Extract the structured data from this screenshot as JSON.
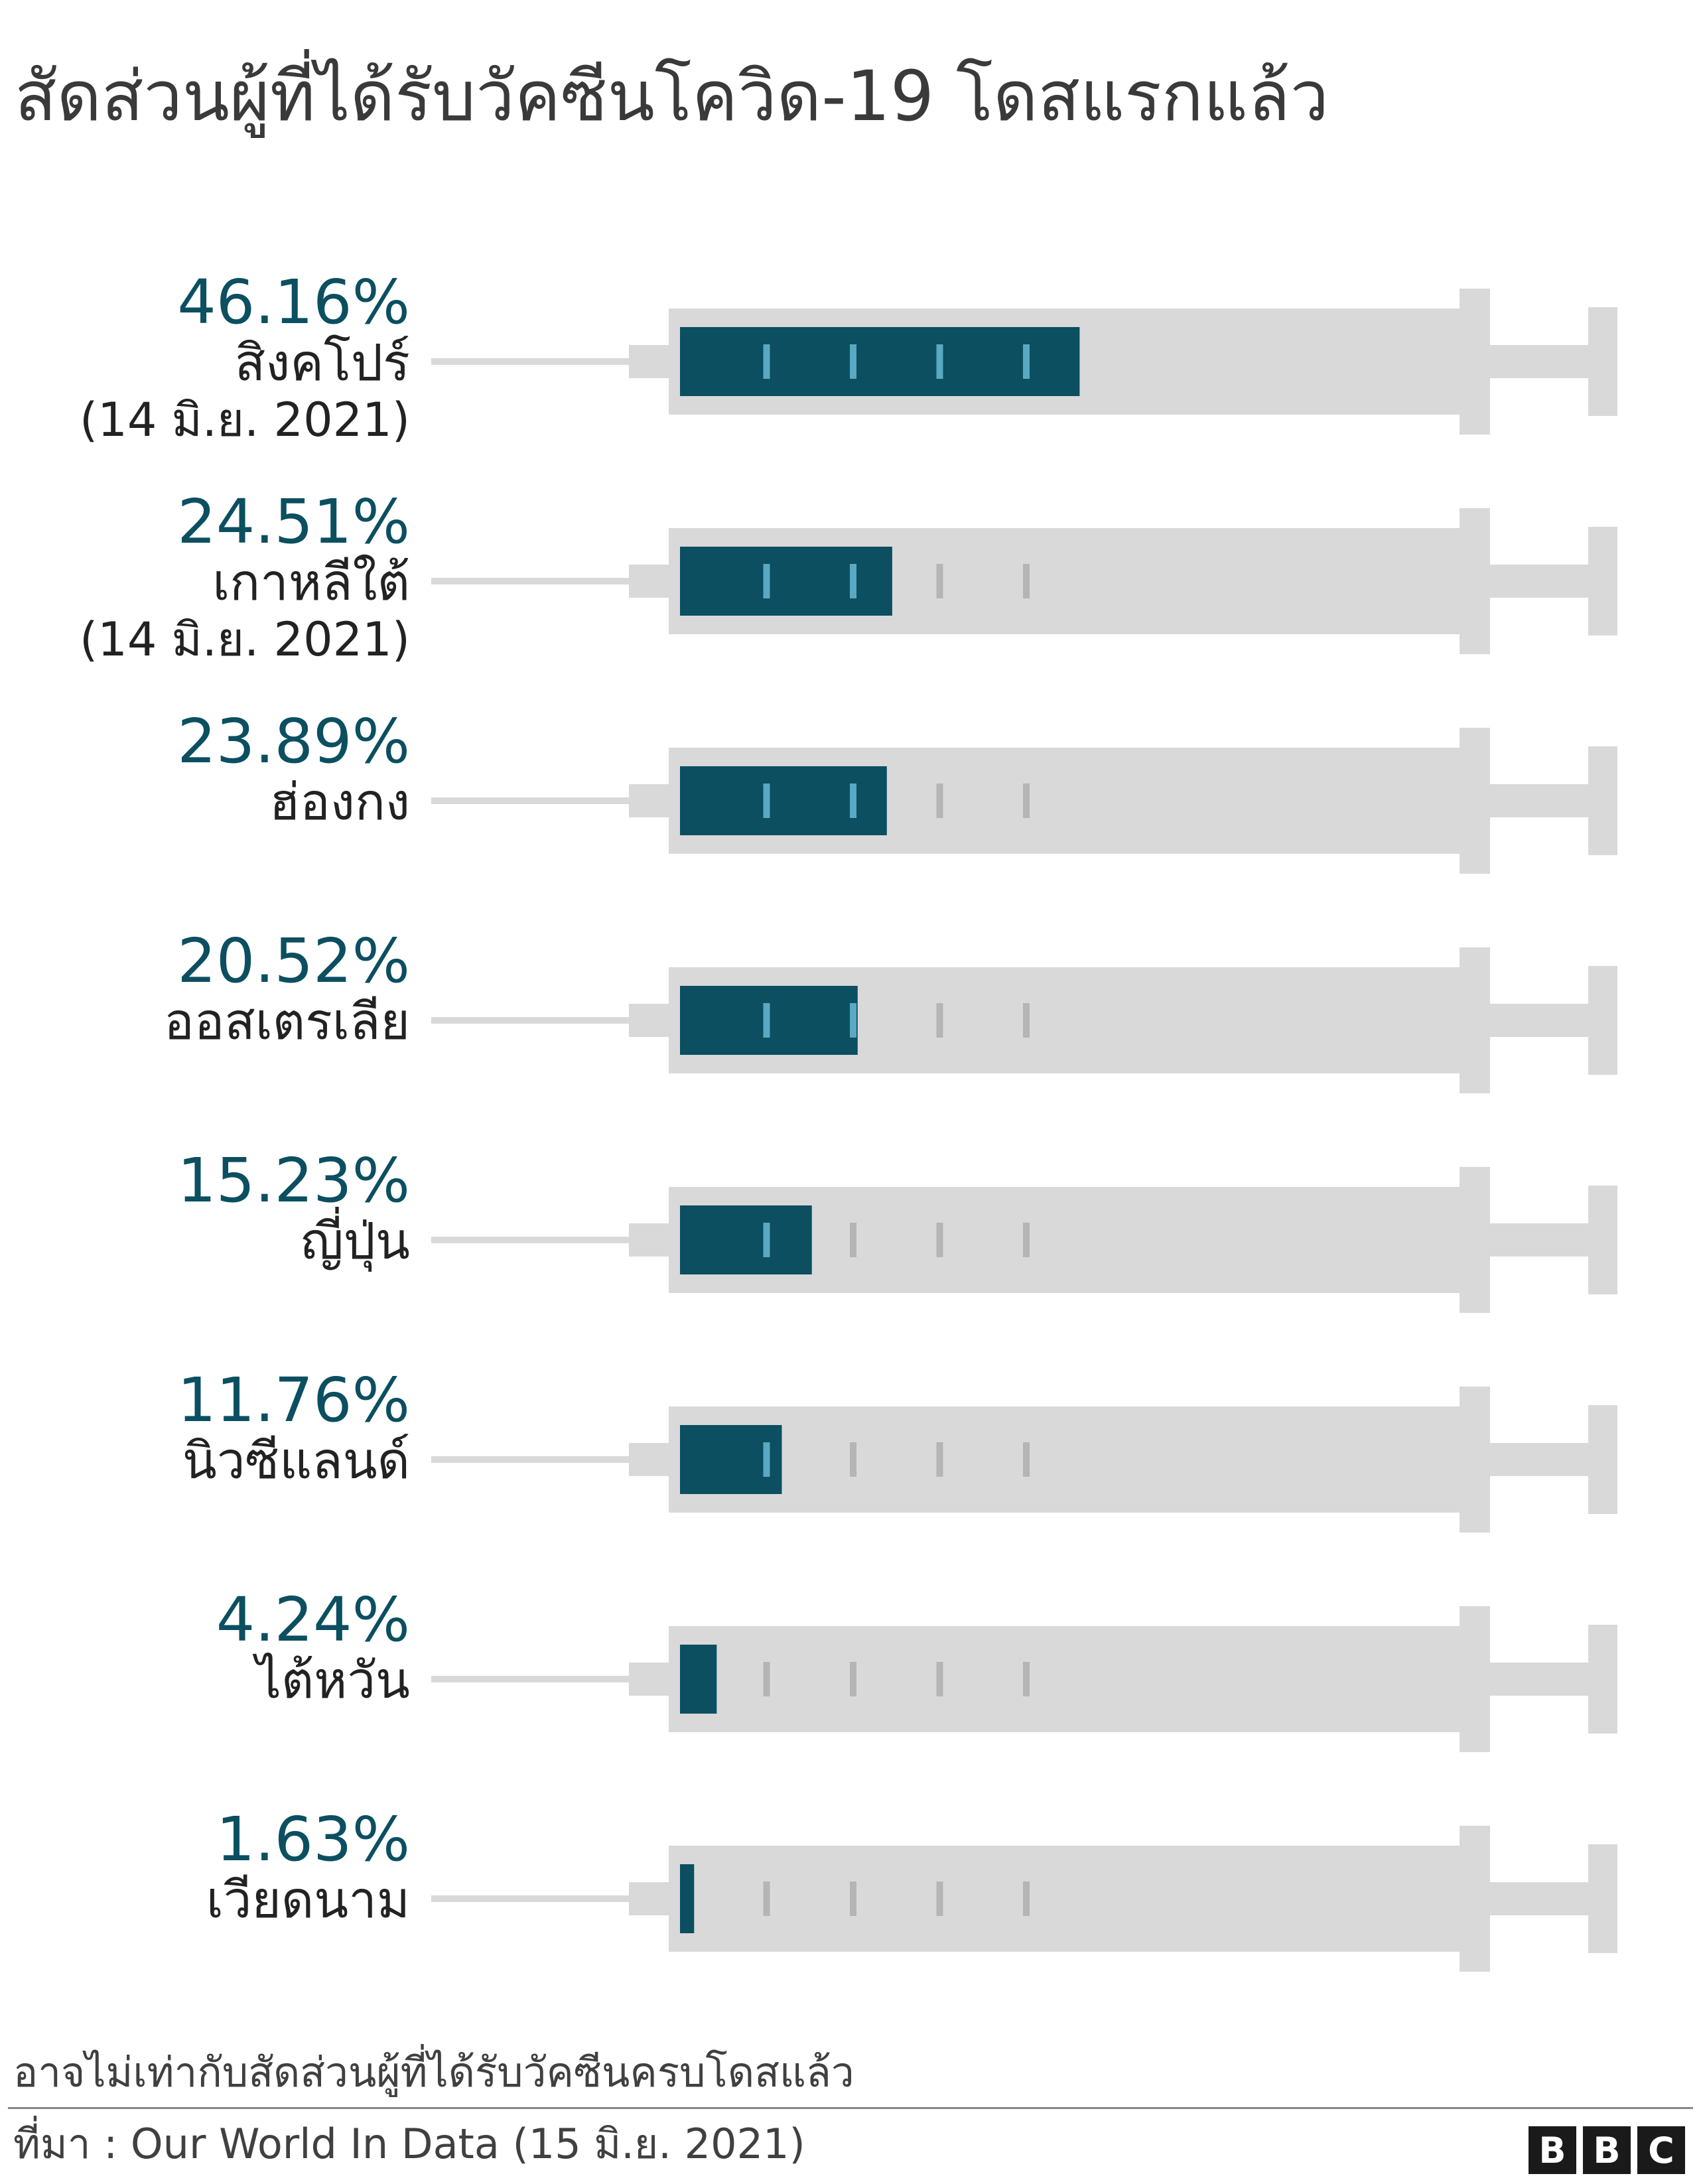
{
  "title": "สัดส่วนผู้ที่ได้รับวัคซีนโควิด-19 โดสแรกแล้ว",
  "footnote": "อาจไม่เท่ากับสัดส่วนผู้ที่ได้รับวัคซีนครบโดสแล้ว",
  "source": "ที่มา : Our World In Data (15 มิ.ย. 2021)",
  "logo": {
    "letters": [
      "B",
      "B",
      "C"
    ]
  },
  "colors": {
    "fill": "#0b4f60",
    "accent_text": "#0b4f60",
    "barrel": "#d9d9d9",
    "needle": "#d9d9d9",
    "tick_on_fill": "#5aa9c2",
    "tick_on_barrel": "#b5b5b5",
    "label_text": "#222222"
  },
  "chart_data": {
    "type": "bar",
    "orientation": "horizontal",
    "value_unit": "%",
    "xlim": [
      0,
      100
    ],
    "categories": [
      "สิงคโปร์",
      "เกาหลีใต้",
      "ฮ่องกง",
      "ออสเตรเลีย",
      "ญี่ปุ่น",
      "นิวซีแลนด์",
      "ไต้หวัน",
      "เวียดนาม"
    ],
    "values": [
      46.16,
      24.51,
      23.89,
      20.52,
      15.23,
      11.76,
      4.24,
      1.63
    ],
    "value_labels": [
      "46.16%",
      "24.51%",
      "23.89%",
      "20.52%",
      "15.23%",
      "11.76%",
      "4.24%",
      "1.63%"
    ],
    "date_notes": [
      "(14 มิ.ย. 2021)",
      "(14 มิ.ย. 2021)",
      "",
      "",
      "",
      "",
      "",
      ""
    ],
    "tick_values": [
      10,
      20,
      30,
      40
    ],
    "grid": false,
    "legend": "none"
  }
}
